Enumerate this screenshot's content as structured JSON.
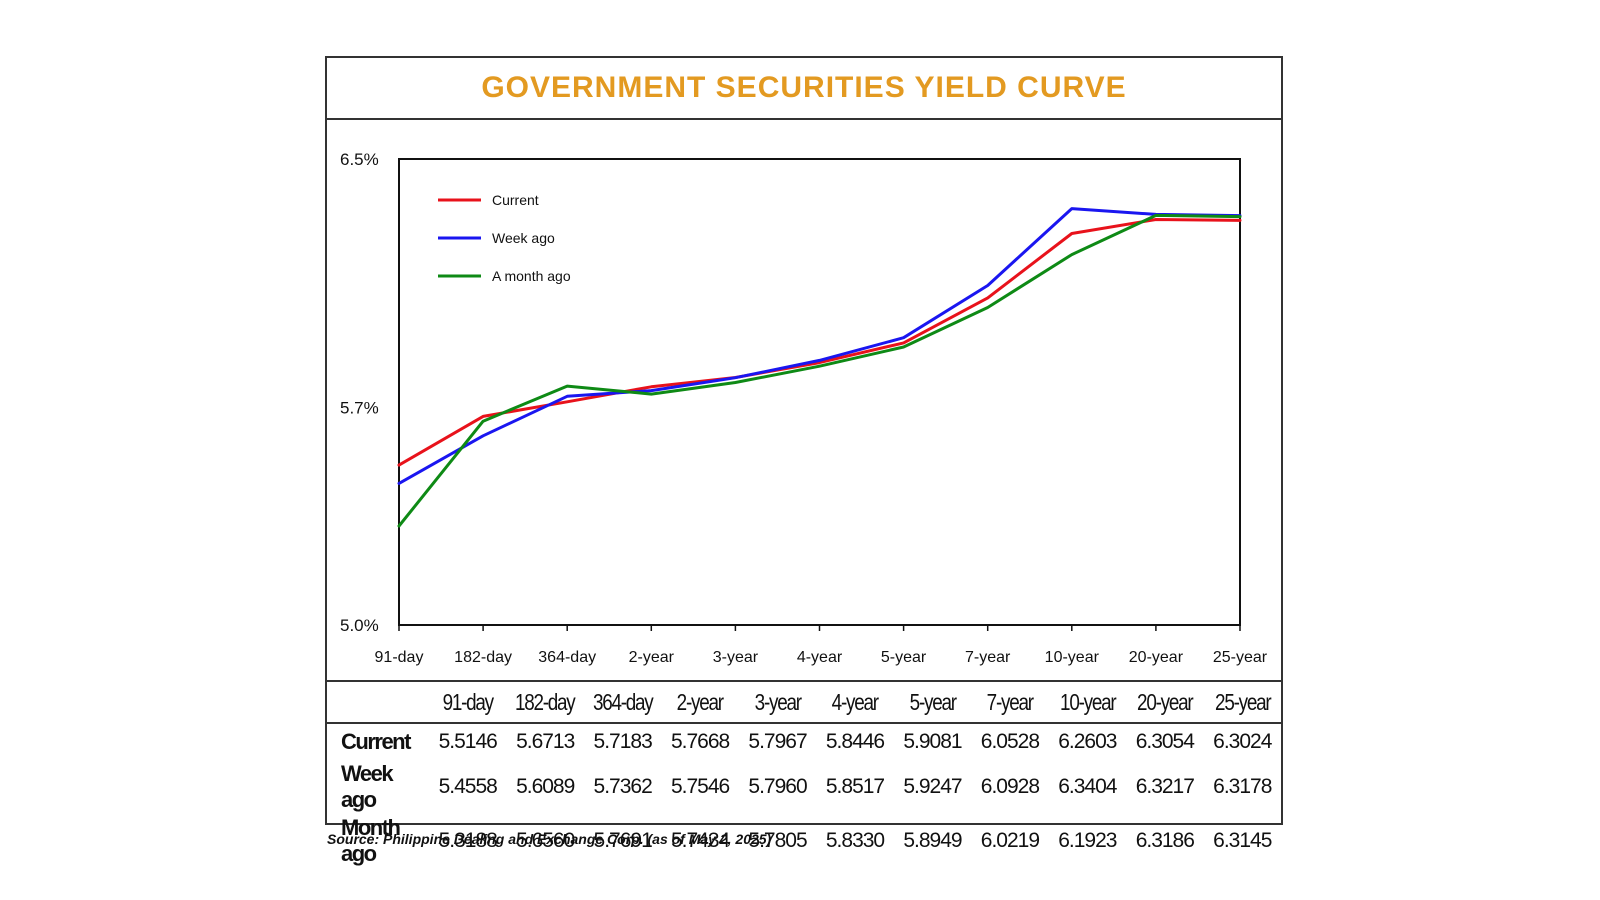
{
  "header": {
    "title": "GOVERNMENT SECURITIES YIELD CURVE"
  },
  "chart_data": {
    "type": "line",
    "title": "GOVERNMENT SECURITIES YIELD CURVE",
    "categories": [
      "91-day",
      "182-day",
      "364-day",
      "2-year",
      "3-year",
      "4-year",
      "5-year",
      "7-year",
      "10-year",
      "20-year",
      "25-year"
    ],
    "yticks": [
      "6.5%",
      "5.7%",
      "5.0%"
    ],
    "ytick_values": [
      6.5,
      5.7,
      5.0
    ],
    "ylim": [
      5.0,
      6.5
    ],
    "legend_position": "top-left",
    "series": [
      {
        "name": "Current",
        "color": "#e8121b",
        "values": [
          5.5146,
          5.6713,
          5.7183,
          5.7668,
          5.7967,
          5.8446,
          5.9081,
          6.0528,
          6.2603,
          6.3054,
          6.3024
        ]
      },
      {
        "name": "Week ago",
        "color": "#1a16f0",
        "values": [
          5.4558,
          5.6089,
          5.7362,
          5.7546,
          5.796,
          5.8517,
          5.9247,
          6.0928,
          6.3404,
          6.3217,
          6.3178
        ]
      },
      {
        "name": "A month ago",
        "color": "#0e8a15",
        "values": [
          5.3188,
          5.656,
          5.7691,
          5.7434,
          5.7805,
          5.833,
          5.8949,
          6.0219,
          6.1923,
          6.3186,
          6.3145
        ]
      }
    ]
  },
  "table": {
    "columns": [
      "91-day",
      "182-day",
      "364-day",
      "2-year",
      "3-year",
      "4-year",
      "5-year",
      "7-year",
      "10-year",
      "20-year",
      "25-year"
    ],
    "rows": [
      {
        "label": "Current",
        "values": [
          "5.5146",
          "5.6713",
          "5.7183",
          "5.7668",
          "5.7967",
          "5.8446",
          "5.9081",
          "6.0528",
          "6.2603",
          "6.3054",
          "6.3024"
        ]
      },
      {
        "label": "Week ago",
        "values": [
          "5.4558",
          "5.6089",
          "5.7362",
          "5.7546",
          "5.7960",
          "5.8517",
          "5.9247",
          "6.0928",
          "6.3404",
          "6.3217",
          "6.3178"
        ]
      },
      {
        "label": "Month ago",
        "values": [
          "5.3188",
          "5.6560",
          "5.7691",
          "5.7434",
          "5.7805",
          "5.8330",
          "5.8949",
          "6.0219",
          "6.1923",
          "6.3186",
          "6.3145"
        ]
      }
    ]
  },
  "footer": {
    "source": "Source: Philippine Dealing and Exchange Corp. (as of May 2, 2025)"
  }
}
